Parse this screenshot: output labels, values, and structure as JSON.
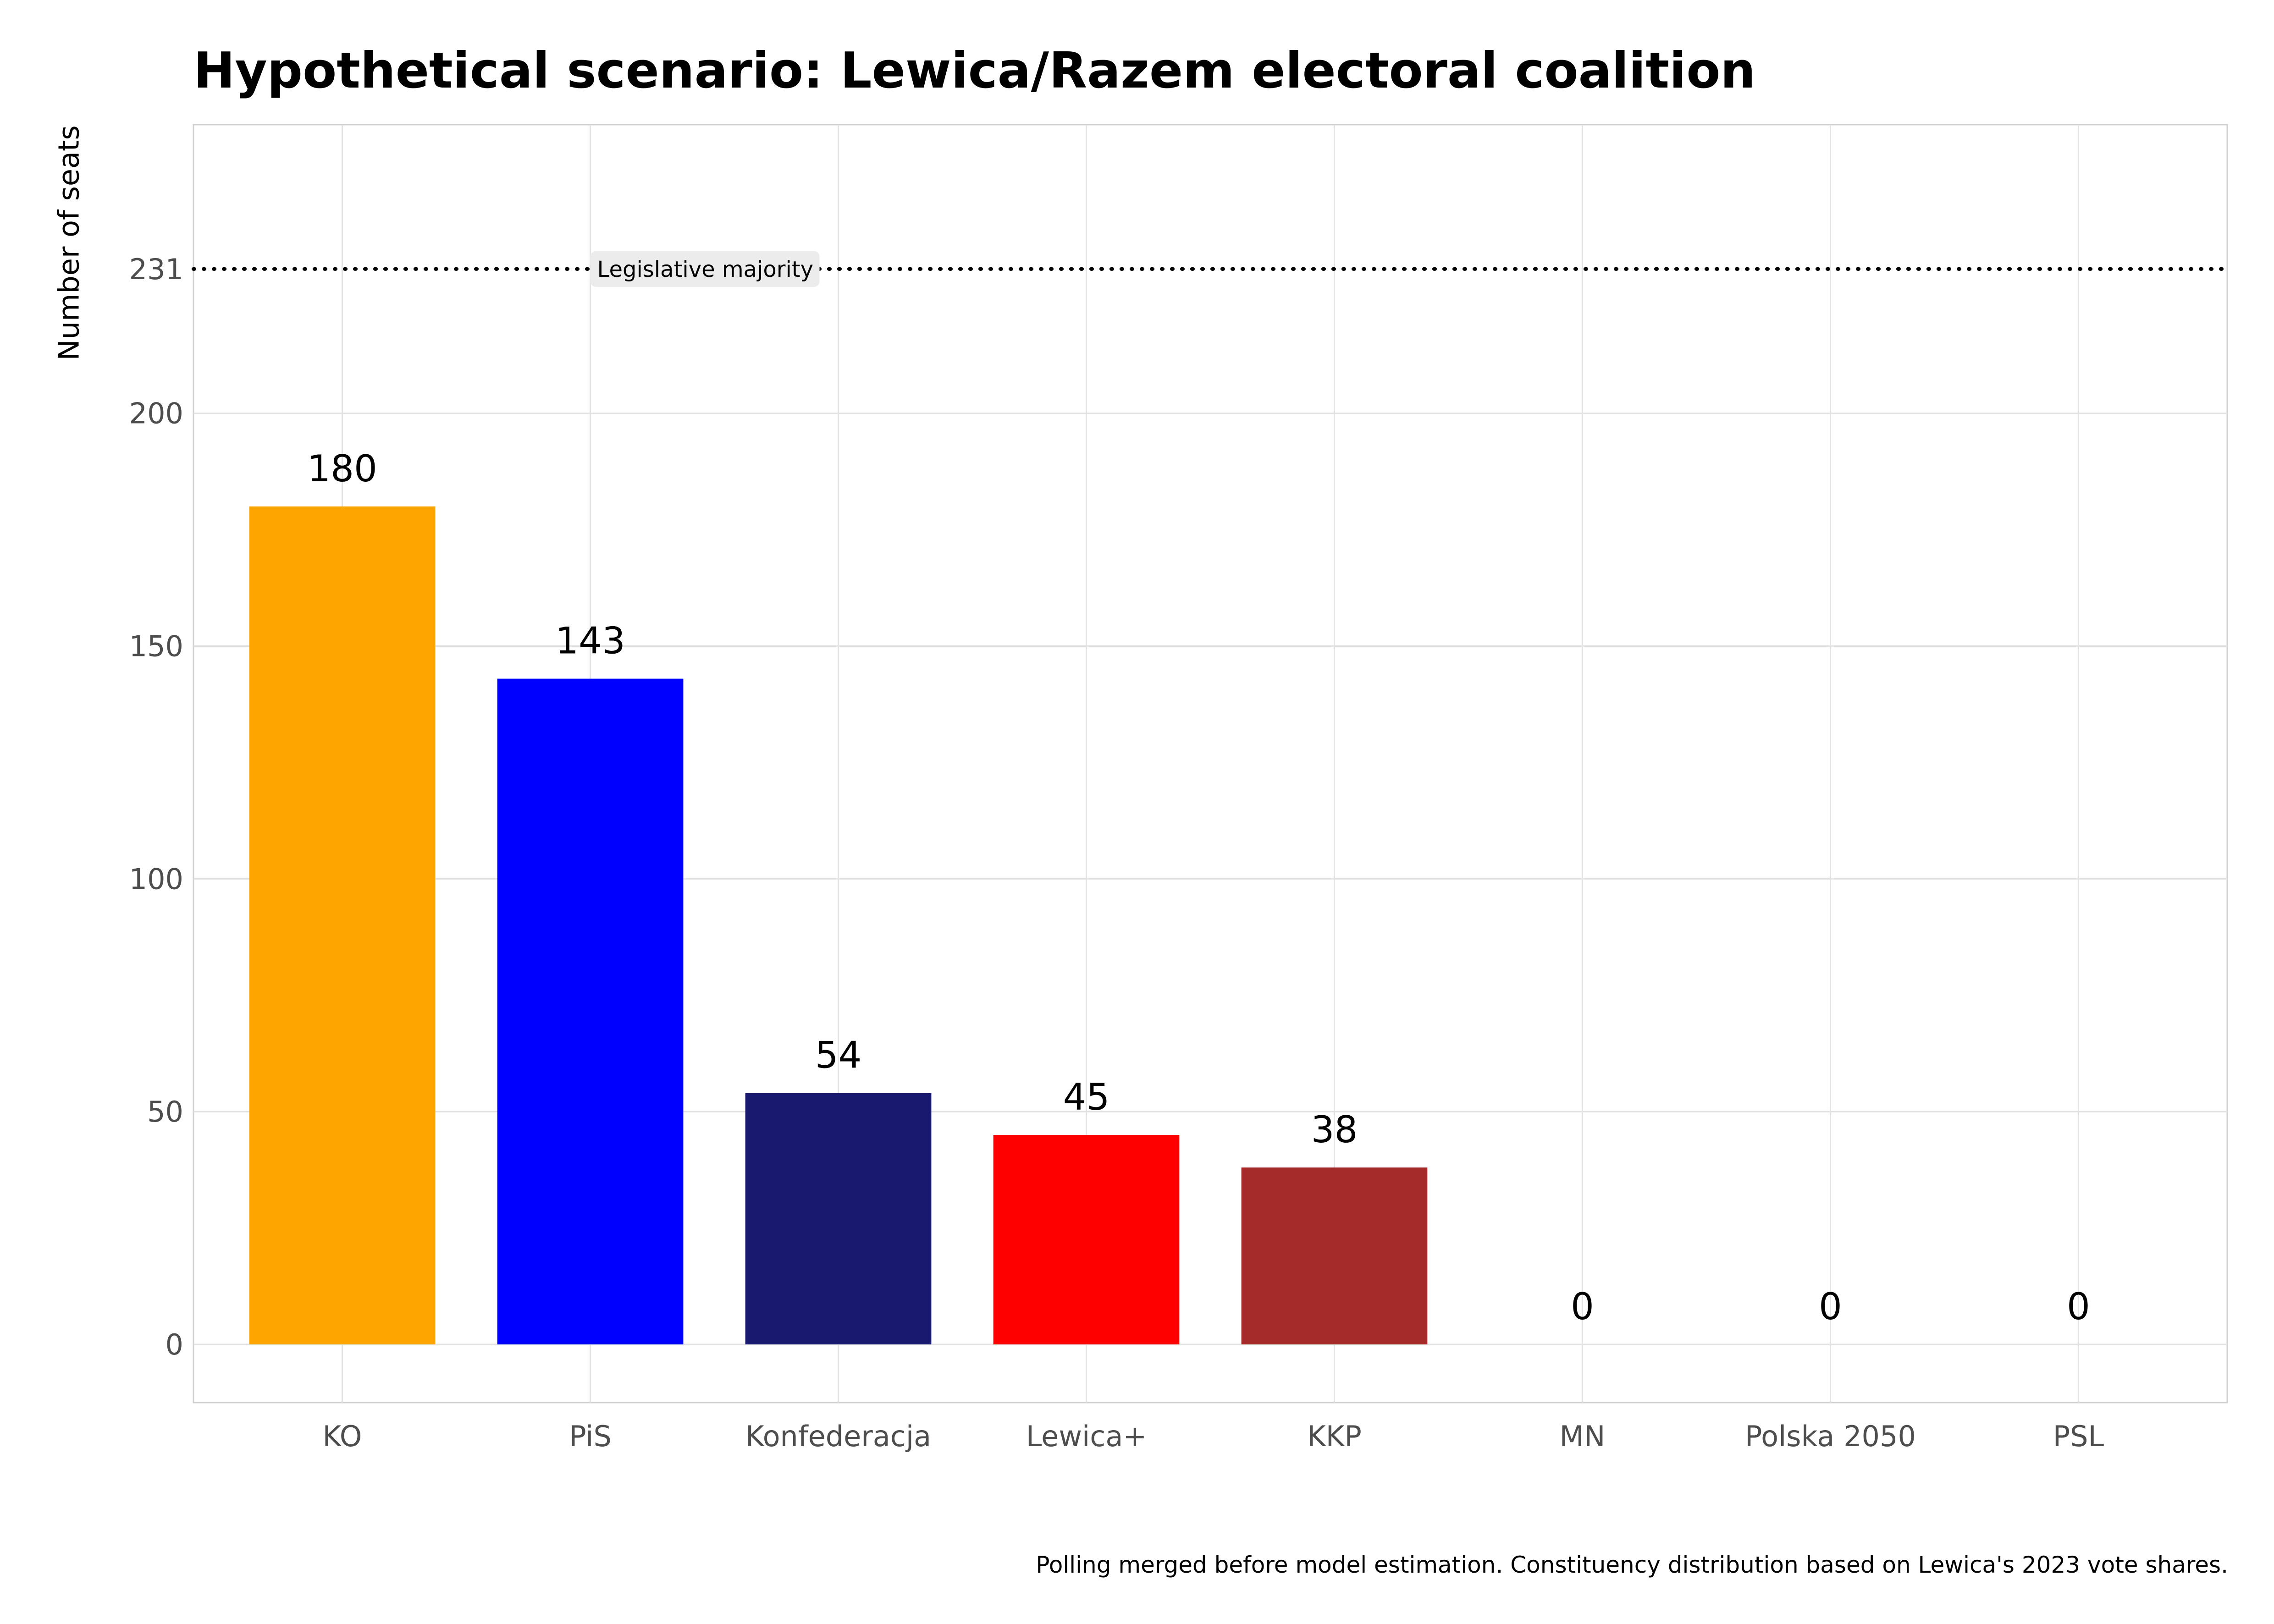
{
  "title": "Hypothetical scenario: Lewica/Razem electoral coalition",
  "caption": "Polling merged before model estimation. Constituency distribution based on Lewica's 2023 vote shares.",
  "chart_data": {
    "type": "bar",
    "title": "Hypothetical scenario: Lewica/Razem electoral coalition",
    "xlabel": "",
    "ylabel": "Number of seats",
    "categories": [
      "KO",
      "PiS",
      "Konfederacja",
      "Lewica+",
      "KKP",
      "MN",
      "Polska 2050",
      "PSL"
    ],
    "values": [
      180,
      143,
      54,
      45,
      38,
      0,
      0,
      0
    ],
    "data_labels": [
      "180",
      "143",
      "54",
      "45",
      "38",
      "0",
      "0",
      "0"
    ],
    "colors": [
      "#FFA500",
      "#0000FF",
      "#191970",
      "#FF0000",
      "#A52A2A",
      "#888888",
      "#888888",
      "#888888"
    ],
    "ylim": [
      -12.5,
      262
    ],
    "yticks": [
      0,
      50,
      100,
      150,
      200,
      231
    ],
    "ytick_labels": [
      "0",
      "50",
      "100",
      "150",
      "200",
      "231"
    ],
    "grid": true,
    "reference_line": {
      "value": 231,
      "label": "Legislative majority",
      "style": "dotted",
      "color": "#000000"
    }
  }
}
